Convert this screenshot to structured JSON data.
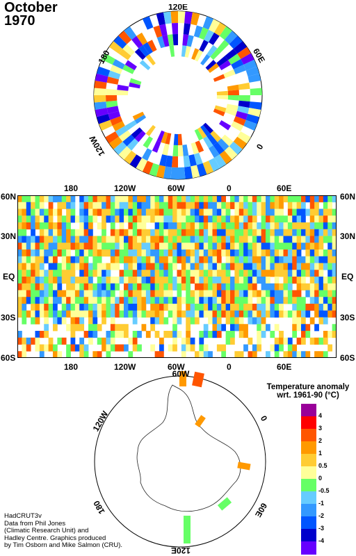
{
  "header": {
    "month": "October",
    "year": "1970"
  },
  "north_polar": {
    "labels": {
      "top": "120E",
      "left": "180",
      "right": "60E",
      "bottom_left": "120W",
      "bottom_right": "0"
    }
  },
  "equatorial": {
    "lon_labels": [
      "180",
      "120W",
      "60W",
      "0",
      "60E"
    ],
    "lat_labels": [
      "60N",
      "30N",
      "EQ",
      "30S",
      "60S"
    ]
  },
  "south_polar": {
    "labels": {
      "top": "60W",
      "left": "120W",
      "right": "0",
      "bottom_left": "180",
      "bottom_right": "60E",
      "bottom": "120E"
    }
  },
  "legend": {
    "title_line1": "Temperature anomaly",
    "title_line2": "wrt. 1961-90  (°C)",
    "labels": [
      "4",
      "3",
      "2",
      "1",
      "0.5",
      "0",
      "-0.5",
      "-1",
      "-2",
      "-3",
      "-4"
    ],
    "colors": [
      "#990099",
      "#ff0000",
      "#ff5500",
      "#ff9900",
      "#ffcc33",
      "#ffff99",
      "#66ff66",
      "#66ccff",
      "#3399ff",
      "#0055ff",
      "#0000cc",
      "#6600ff"
    ]
  },
  "credits": {
    "line1": "HadCRUT3v",
    "line2": "Data from Phil Jones",
    "line3": "(Climatic Research Unit) and",
    "line4": "Hadley Centre.  Graphics produced",
    "line5": "by Tim Osborn and Mike Salmon (CRU)."
  }
}
